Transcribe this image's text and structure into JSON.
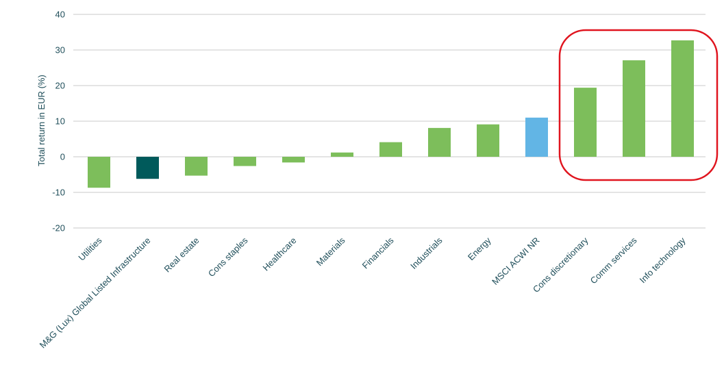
{
  "chart_data": {
    "type": "bar",
    "title": "",
    "xlabel": "",
    "ylabel": "Total return in EUR (%)",
    "ylim": [
      -20,
      40
    ],
    "yticks": [
      40,
      30,
      20,
      10,
      0,
      -10,
      -20
    ],
    "grid": true,
    "categories": [
      "Utilities",
      "M&G (Lux) Global Listed Infrastructure",
      "Real estate",
      "Cons staples",
      "Healthcare",
      "Materials",
      "Financials",
      "Industrials",
      "Energy",
      "MSCI ACWI NR",
      "Cons discretionary",
      "Comm services",
      "Info technology"
    ],
    "values": [
      -8.7,
      -6.2,
      -5.3,
      -2.6,
      -1.6,
      1.2,
      4.1,
      8.1,
      9.1,
      11.0,
      19.4,
      27.1,
      32.7
    ],
    "bar_colors": [
      "#7dbe5b",
      "#005a5b",
      "#7dbe5b",
      "#7dbe5b",
      "#7dbe5b",
      "#7dbe5b",
      "#7dbe5b",
      "#7dbe5b",
      "#7dbe5b",
      "#62b5e5",
      "#7dbe5b",
      "#7dbe5b",
      "#7dbe5b"
    ],
    "highlight": {
      "categories": [
        "Cons discretionary",
        "Comm services",
        "Info technology"
      ],
      "shape": "rounded-rectangle",
      "color": "#e0141e"
    }
  },
  "colors": {
    "sector": "#7dbe5b",
    "fund": "#005a5b",
    "index": "#62b5e5",
    "grid": "#c8c8c8",
    "text": "#1f4e5a",
    "highlight": "#e0141e"
  }
}
